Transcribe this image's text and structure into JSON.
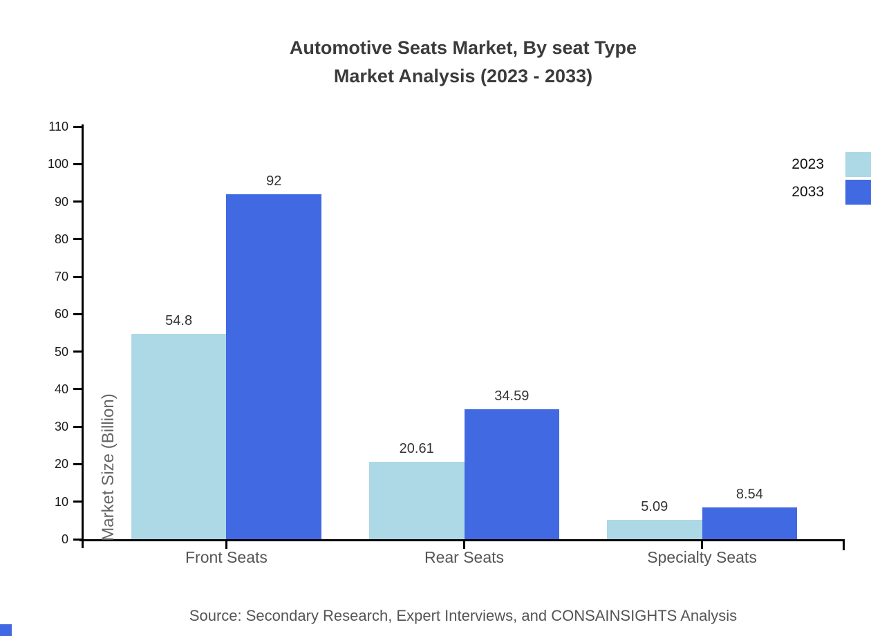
{
  "title": {
    "line1": "Automotive Seats Market, By seat Type",
    "line2": "Market Analysis (2023 - 2033)"
  },
  "y_axis_title": "Market Size (Billion)",
  "source": "Source: Secondary Research, Expert Interviews, and CONSAINSIGHTS Analysis",
  "legend": [
    {
      "label": "2023",
      "color": "#ADD8E6"
    },
    {
      "label": "2033",
      "color": "#4169E1"
    }
  ],
  "colors": {
    "series_2023": "#ADD8E6",
    "series_2033": "#4169E1",
    "axis": "#000000",
    "title_text": "#3b3b3b",
    "value_label_text": "#333333",
    "category_text": "#555555",
    "tick_text": "#1a1a1a",
    "source_text": "#555555",
    "corner_mark": "#4169E1"
  },
  "chart_data": {
    "type": "bar",
    "categories": [
      "Front Seats",
      "Rear Seats",
      "Specialty Seats"
    ],
    "series": [
      {
        "name": "2023",
        "color": "#ADD8E6",
        "values": [
          54.8,
          20.61,
          5.09
        ]
      },
      {
        "name": "2033",
        "color": "#4169E1",
        "values": [
          92,
          34.59,
          8.54
        ]
      }
    ],
    "value_labels": [
      "54.8",
      "92",
      "20.61",
      "34.59",
      "5.09",
      "8.54"
    ],
    "title": "Automotive Seats Market, By seat Type Market Analysis (2023 - 2033)",
    "xlabel": "",
    "ylabel": "Market Size (Billion)",
    "ylim": [
      0,
      110
    ],
    "yticks": [
      0,
      10,
      20,
      30,
      40,
      50,
      60,
      70,
      80,
      90,
      100,
      110
    ],
    "grid": false,
    "legend_position": "top-right",
    "bar_group_layout": {
      "xlim": [
        -0.6,
        2.6
      ],
      "bar_width_units": 0.4
    }
  }
}
